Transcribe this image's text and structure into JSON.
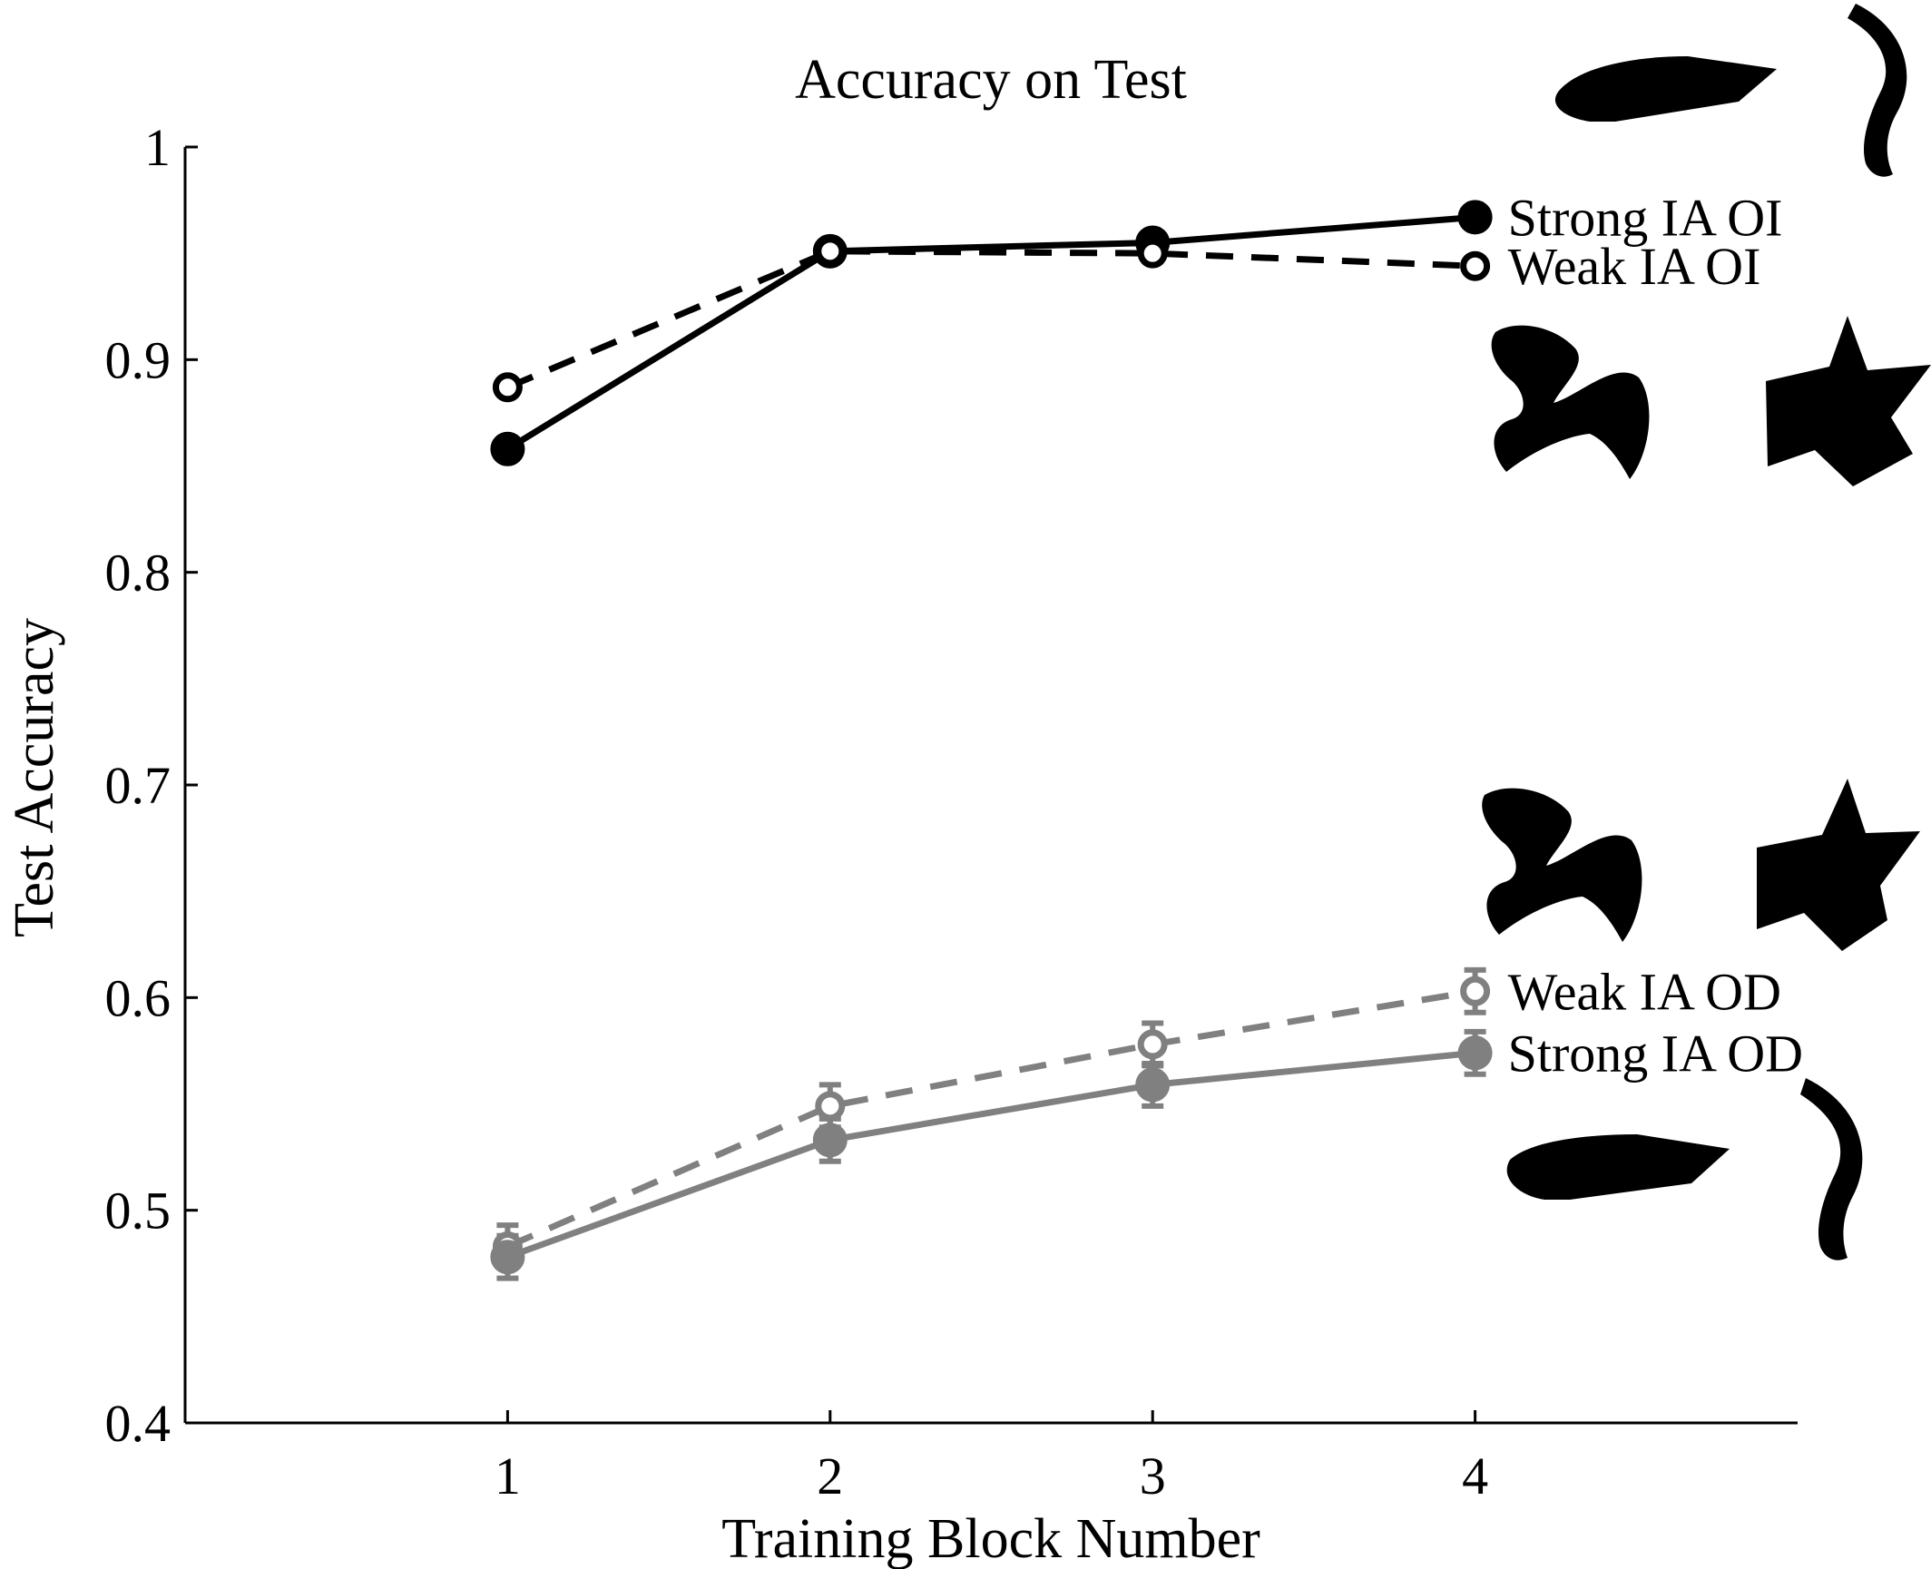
{
  "chart_data": {
    "type": "line",
    "title": "Accuracy on Test",
    "xlabel": "Training Block Number",
    "ylabel": "Test Accuracy",
    "x": [
      1,
      2,
      3,
      4
    ],
    "xticks": [
      "1",
      "2",
      "3",
      "4"
    ],
    "xlim": [
      0,
      5
    ],
    "ylim": [
      0.4,
      1.0
    ],
    "yticks": [
      "0.4",
      "0.5",
      "0.6",
      "0.7",
      "0.8",
      "0.9",
      "1"
    ],
    "yticks_values": [
      0.4,
      0.5,
      0.6,
      0.7,
      0.8,
      0.9,
      1.0
    ],
    "grid": false,
    "legend": "labels at line ends",
    "series": [
      {
        "name": "Strong IA OI",
        "values": [
          0.858,
          0.951,
          0.955,
          0.967
        ],
        "errors": [
          0.004,
          0.004,
          0.003,
          0.003
        ],
        "color": "#000000",
        "line": "solid",
        "marker": "filled"
      },
      {
        "name": "Weak IA OI",
        "values": [
          0.887,
          0.951,
          0.95,
          0.944
        ],
        "errors": [
          0.003,
          0.003,
          0.003,
          0.003
        ],
        "color": "#000000",
        "line": "dashed",
        "marker": "open"
      },
      {
        "name": "Weak IA OD",
        "values": [
          0.483,
          0.549,
          0.578,
          0.603
        ],
        "errors": [
          0.01,
          0.01,
          0.01,
          0.01
        ],
        "color": "#808080",
        "line": "dashed",
        "marker": "open"
      },
      {
        "name": "Strong IA OD",
        "values": [
          0.478,
          0.533,
          0.559,
          0.574
        ],
        "errors": [
          0.01,
          0.01,
          0.01,
          0.01
        ],
        "color": "#808080",
        "line": "solid",
        "marker": "filled"
      }
    ]
  }
}
